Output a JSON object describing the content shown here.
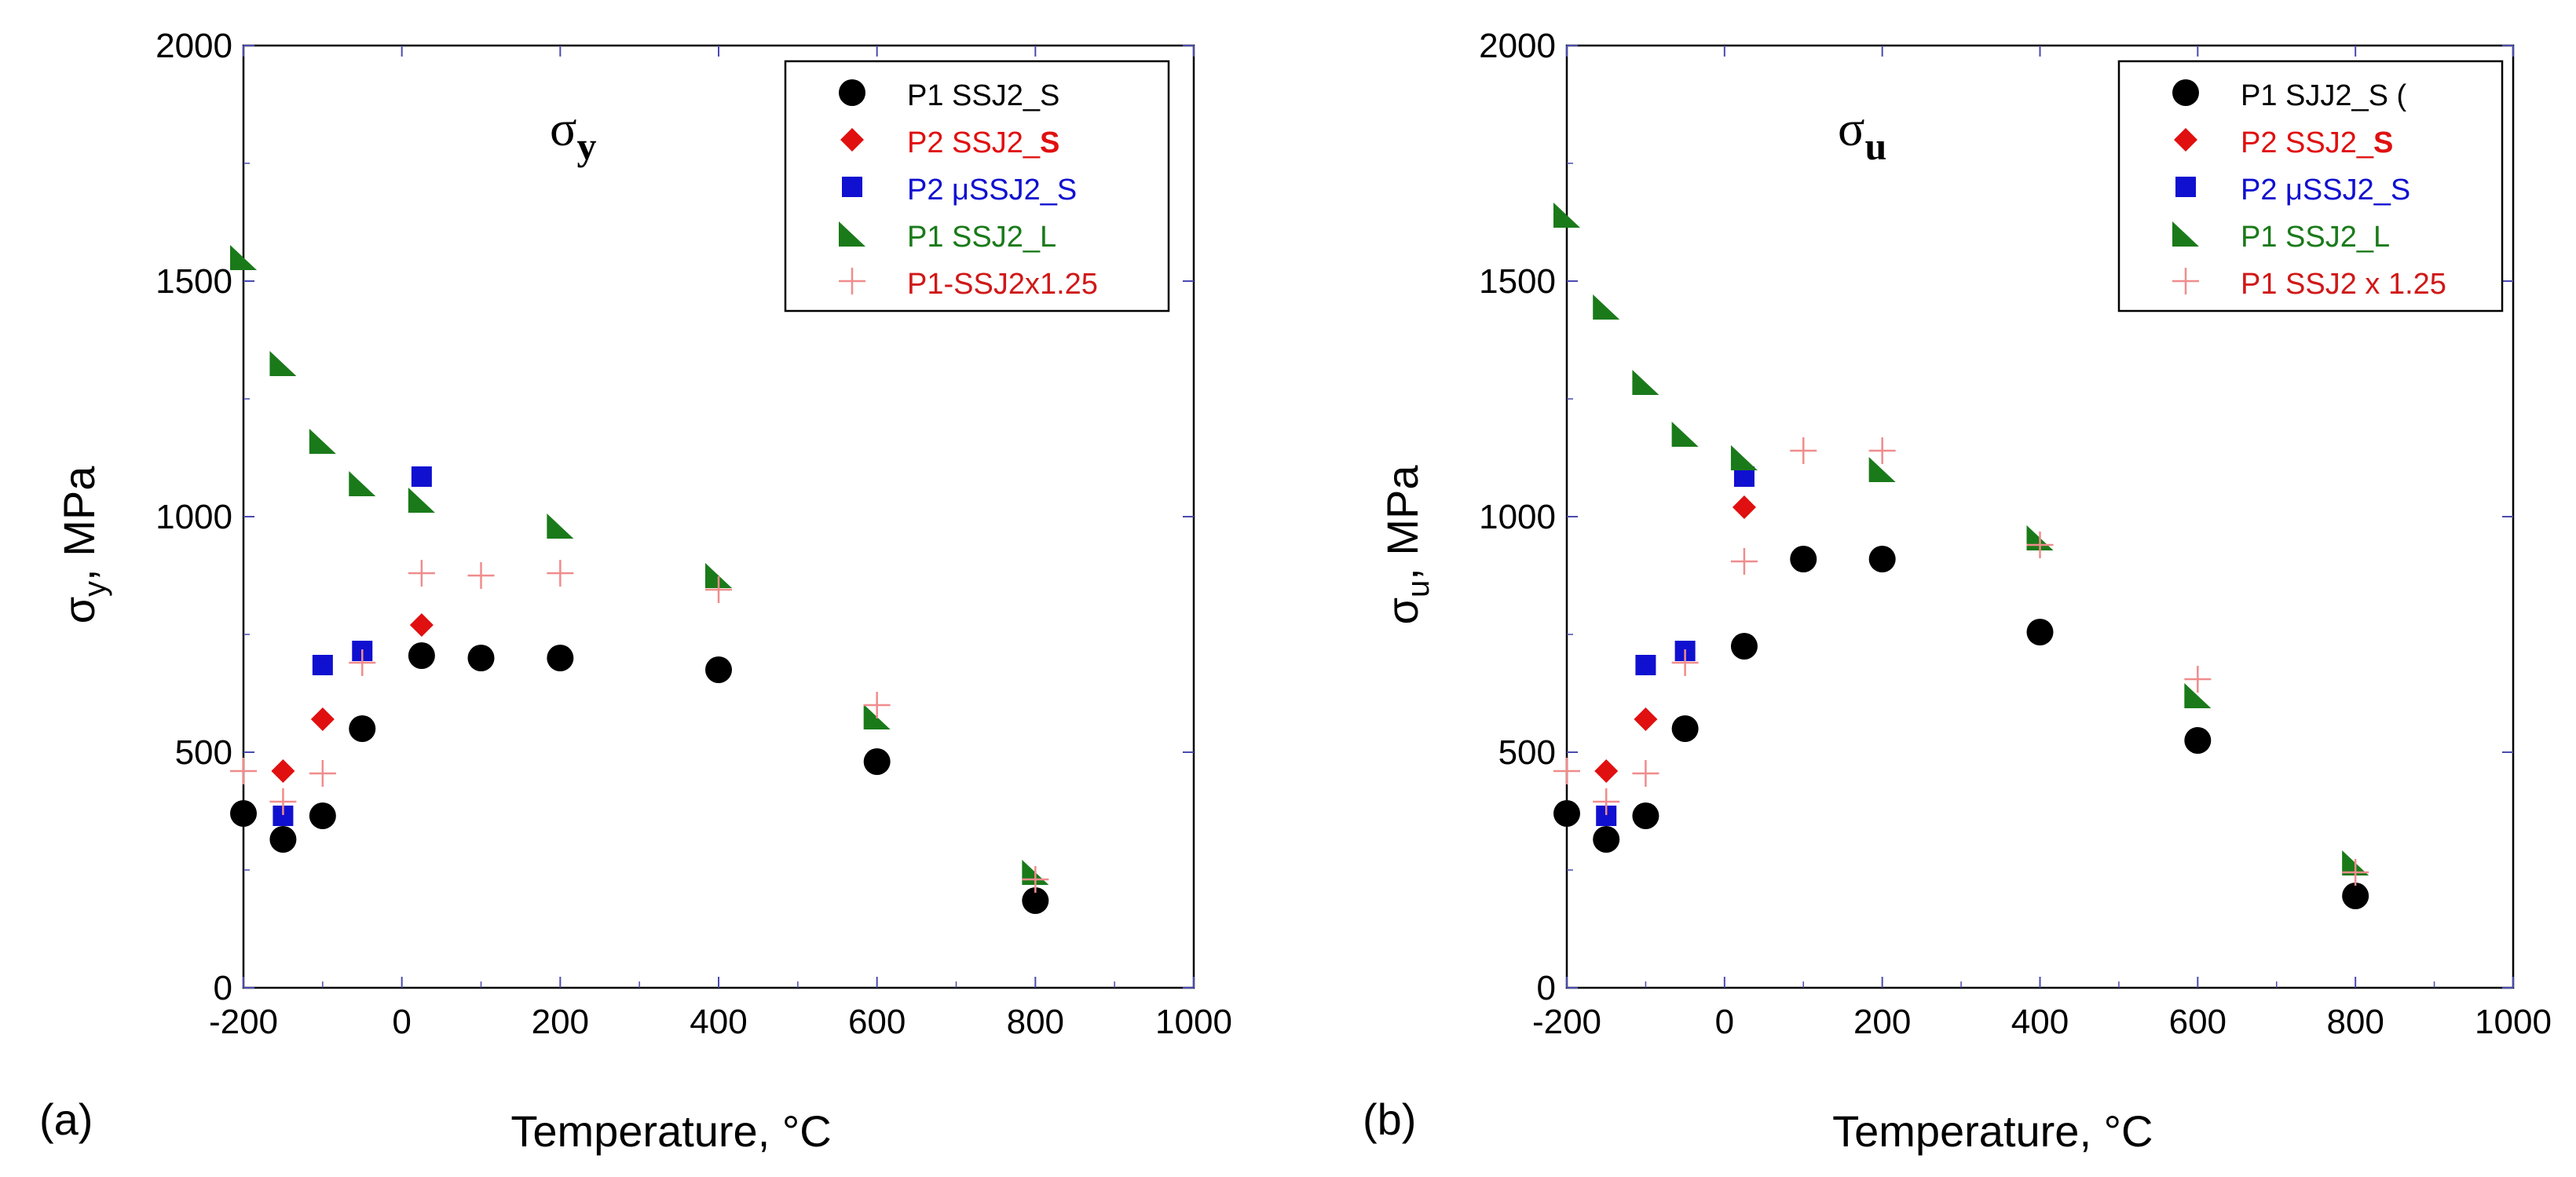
{
  "chart_data": [
    {
      "panel_label": "(a)",
      "type": "scatter",
      "title_symbol": "σ",
      "title_sub": "y",
      "ylabel": "σ",
      "ylabel_sub": "y",
      "ylabel_tail": ", MPa",
      "xlabel": "Temperature, °C",
      "xlim": [
        -200,
        1000
      ],
      "ylim": [
        0,
        2000
      ],
      "xticks": [
        "-200",
        "0",
        "200",
        "400",
        "600",
        "800",
        "1000"
      ],
      "yticks": [
        "0",
        "500",
        "1000",
        "1500",
        "2000"
      ],
      "legend_position": "top-right",
      "series": [
        {
          "name": "P1 SSJ2_S",
          "name_main": "P1 SSJ2_S",
          "name_bold": "",
          "marker": "circle",
          "color": "#000000",
          "x": [
            -200,
            -150,
            -100,
            -50,
            25,
            100,
            200,
            400,
            600,
            800
          ],
          "y": [
            370,
            315,
            365,
            550,
            705,
            700,
            700,
            675,
            480,
            185
          ]
        },
        {
          "name": "P2 SSJ2_S",
          "name_main": "P2 SSJ2_",
          "name_bold": "S",
          "marker": "diamond",
          "color": "#e01010",
          "x": [
            -150,
            -100,
            25
          ],
          "y": [
            460,
            570,
            770
          ]
        },
        {
          "name": "P2 μSSJ2_S",
          "name_main": "P2 μSSJ2_S",
          "name_bold": "",
          "marker": "square",
          "color": "#1010d0",
          "x": [
            -150,
            -100,
            -50,
            25
          ],
          "y": [
            365,
            685,
            715,
            1085
          ]
        },
        {
          "name": "P1 SSJ2_L",
          "name_main": "P1 SSJ2_L",
          "name_bold": "",
          "marker": "triangle",
          "color": "#1a7a1a",
          "x": [
            -200,
            -150,
            -100,
            -50,
            25,
            200,
            400,
            600,
            800
          ],
          "y": [
            1550,
            1325,
            1160,
            1070,
            1035,
            980,
            875,
            575,
            245
          ]
        },
        {
          "name": "P1-SSJ2x1.25",
          "name_main": "P1-SSJ2x1.25",
          "name_bold": "",
          "marker": "plus",
          "color": "#f08c8c",
          "x": [
            -200,
            -150,
            -100,
            -50,
            25,
            100,
            200,
            400,
            600,
            800
          ],
          "y": [
            460,
            395,
            455,
            690,
            880,
            875,
            880,
            845,
            600,
            230
          ]
        }
      ]
    },
    {
      "panel_label": "(b)",
      "type": "scatter",
      "title_symbol": "σ",
      "title_sub": "u",
      "ylabel": "σ",
      "ylabel_sub": "u",
      "ylabel_tail": ", MPa",
      "xlabel": "Temperature, °C",
      "xlim": [
        -200,
        1000
      ],
      "ylim": [
        0,
        2000
      ],
      "xticks": [
        "-200",
        "0",
        "200",
        "400",
        "600",
        "800",
        "1000"
      ],
      "yticks": [
        "0",
        "500",
        "1000",
        "1500",
        "2000"
      ],
      "legend_position": "top-right",
      "series": [
        {
          "name": "P1 SJJ2_S (",
          "name_main": "P1 SJJ2_S (",
          "name_bold": "",
          "marker": "circle",
          "color": "#000000",
          "x": [
            -200,
            -150,
            -100,
            -50,
            25,
            100,
            200,
            400,
            600,
            800
          ],
          "y": [
            370,
            315,
            365,
            550,
            725,
            910,
            910,
            755,
            525,
            195
          ]
        },
        {
          "name": "P2 SSJ2_S",
          "name_main": "P2 SSJ2_",
          "name_bold": "S",
          "marker": "diamond",
          "color": "#e01010",
          "x": [
            -150,
            -100,
            25
          ],
          "y": [
            460,
            570,
            1020
          ]
        },
        {
          "name": "P2 μSSJ2_S",
          "name_main": "P2 μSSJ2_S",
          "name_bold": "",
          "marker": "square",
          "color": "#1010d0",
          "x": [
            -150,
            -100,
            -50,
            25
          ],
          "y": [
            365,
            685,
            715,
            1085
          ]
        },
        {
          "name": "P1 SSJ2_L",
          "name_main": "P1 SSJ2_L",
          "name_bold": "",
          "marker": "triangle",
          "color": "#1a7a1a",
          "x": [
            -200,
            -150,
            -100,
            -50,
            25,
            200,
            400,
            600,
            800
          ],
          "y": [
            1640,
            1445,
            1285,
            1175,
            1125,
            1100,
            955,
            620,
            265
          ]
        },
        {
          "name": "P1 SSJ2 x 1.25",
          "name_main": "P1 SSJ2 x 1.25",
          "name_bold": "",
          "marker": "plus",
          "color": "#f08c8c",
          "x": [
            -200,
            -150,
            -100,
            -50,
            25,
            100,
            200,
            400,
            600,
            800
          ],
          "y": [
            460,
            395,
            455,
            690,
            905,
            1140,
            1140,
            940,
            655,
            245
          ]
        }
      ]
    }
  ]
}
